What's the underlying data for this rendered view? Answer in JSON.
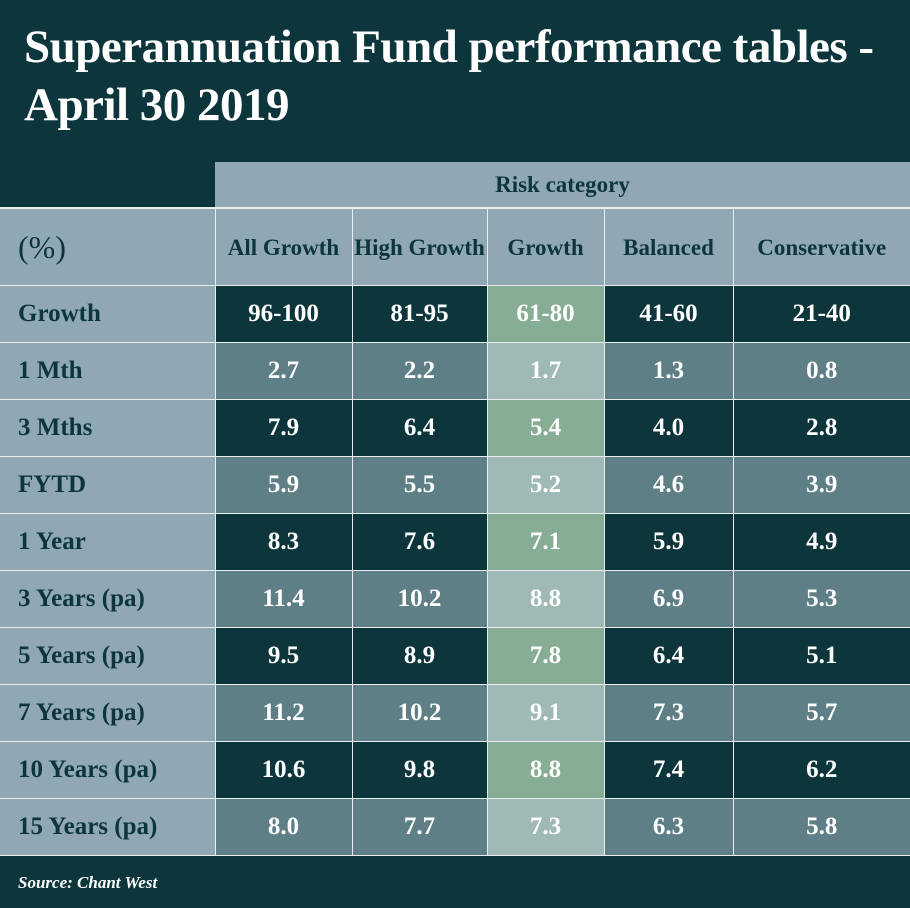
{
  "title": "Superannuation Fund performance tables - April 30 2019",
  "chart_data": {
    "type": "table",
    "group_header": "Risk category",
    "corner_label": "(%)",
    "columns": [
      "All Growth",
      "High Growth",
      "Growth",
      "Balanced",
      "Conservative"
    ],
    "rows": [
      {
        "label": "Growth",
        "values": [
          "96-100",
          "81-95",
          "61-80",
          "41-60",
          "21-40"
        ]
      },
      {
        "label": "1 Mth",
        "values": [
          "2.7",
          "2.2",
          "1.7",
          "1.3",
          "0.8"
        ]
      },
      {
        "label": "3 Mths",
        "values": [
          "7.9",
          "6.4",
          "5.4",
          "4.0",
          "2.8"
        ]
      },
      {
        "label": "FYTD",
        "values": [
          "5.9",
          "5.5",
          "5.2",
          "4.6",
          "3.9"
        ]
      },
      {
        "label": "1 Year",
        "values": [
          "8.3",
          "7.6",
          "7.1",
          "5.9",
          "4.9"
        ]
      },
      {
        "label": "3 Years (pa)",
        "values": [
          "11.4",
          "10.2",
          "8.8",
          "6.9",
          "5.3"
        ]
      },
      {
        "label": "5 Years (pa)",
        "values": [
          "9.5",
          "8.9",
          "7.8",
          "6.4",
          "5.1"
        ]
      },
      {
        "label": "7 Years (pa)",
        "values": [
          "11.2",
          "10.2",
          "9.1",
          "7.3",
          "5.7"
        ]
      },
      {
        "label": "10 Years (pa)",
        "values": [
          "10.6",
          "9.8",
          "8.8",
          "7.4",
          "6.2"
        ]
      },
      {
        "label": "15 Years (pa)",
        "values": [
          "8.0",
          "7.7",
          "7.3",
          "6.3",
          "5.8"
        ]
      }
    ]
  },
  "source": "Source: Chant West",
  "colors": {
    "background": "#0d363c",
    "header": "#8fa8b4",
    "row_light": "#5f7f87",
    "highlight_dark": "#87ad95",
    "highlight_light": "#9fb9b6"
  }
}
